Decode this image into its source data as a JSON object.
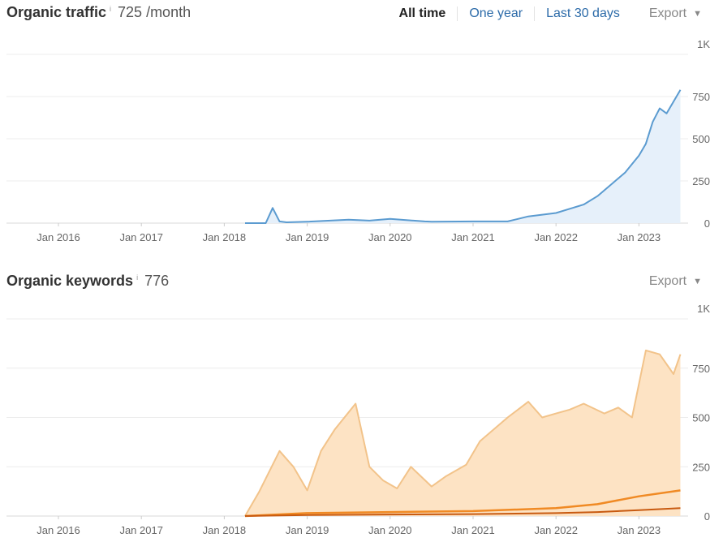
{
  "traffic": {
    "title": "Organic traffic",
    "info": "i",
    "metric": "725 /month",
    "controls": [
      "All time",
      "One year",
      "Last 30 days"
    ],
    "active_control": "All time",
    "export_label": "Export",
    "y_ticks": [
      "1K",
      "750",
      "500",
      "250",
      "0"
    ],
    "x_ticks": [
      "Jan 2016",
      "Jan 2017",
      "Jan 2018",
      "Jan 2019",
      "Jan 2020",
      "Jan 2021",
      "Jan 2022",
      "Jan 2023"
    ]
  },
  "keywords": {
    "title": "Organic keywords",
    "info": "i",
    "metric": "776",
    "export_label": "Export",
    "y_ticks": [
      "1K",
      "750",
      "500",
      "250",
      "0"
    ],
    "x_ticks": [
      "Jan 2016",
      "Jan 2017",
      "Jan 2018",
      "Jan 2019",
      "Jan 2020",
      "Jan 2021",
      "Jan 2022",
      "Jan 2023"
    ]
  },
  "colors": {
    "traffic_line": "#5b9bd0",
    "traffic_fill": "#e6f0fa",
    "keywords_total_line": "#f2c38a",
    "keywords_total_fill": "#fde3c4",
    "keywords_mid_line": "#f08a24",
    "keywords_top_line": "#c85a10",
    "link": "#2b6aa8"
  },
  "chart_data": [
    {
      "type": "area",
      "ylim": [
        0,
        1000
      ],
      "grid": true,
      "series": [
        {
          "x": [
            "2018-04",
            "2018-07",
            "2018-08",
            "2018-09",
            "2018-10",
            "2019-01",
            "2019-07",
            "2019-10",
            "2020-01",
            "2020-06",
            "2020-07",
            "2021-01",
            "2021-06",
            "2021-09",
            "2021-11",
            "2022-01",
            "2022-03",
            "2022-05",
            "2022-07",
            "2022-09",
            "2022-11",
            "2023-01",
            "2023-02",
            "2023-03",
            "2023-04",
            "2023-05",
            "2023-07"
          ],
          "values": [
            0,
            0,
            90,
            10,
            5,
            8,
            20,
            15,
            25,
            10,
            8,
            10,
            10,
            40,
            50,
            60,
            85,
            110,
            160,
            230,
            300,
            400,
            470,
            600,
            680,
            650,
            790
          ]
        }
      ]
    },
    {
      "type": "area",
      "ylim": [
        0,
        1000
      ],
      "grid": true,
      "series": [
        {
          "x": [
            "2018-04",
            "2018-06",
            "2018-09",
            "2018-11",
            "2019-01",
            "2019-03",
            "2019-05",
            "2019-08",
            "2019-10",
            "2019-12",
            "2020-02",
            "2020-04",
            "2020-07",
            "2020-09",
            "2020-12",
            "2021-02",
            "2021-06",
            "2021-09",
            "2021-11",
            "2022-01",
            "2022-03",
            "2022-05",
            "2022-08",
            "2022-10",
            "2022-12",
            "2023-02",
            "2023-04",
            "2023-06",
            "2023-07"
          ],
          "values": [
            0,
            120,
            330,
            250,
            130,
            330,
            440,
            570,
            250,
            180,
            140,
            250,
            150,
            200,
            260,
            380,
            500,
            580,
            500,
            520,
            540,
            570,
            520,
            550,
            500,
            840,
            820,
            720,
            820
          ]
        },
        {
          "x": [
            "2018-04",
            "2019-01",
            "2020-01",
            "2021-01",
            "2022-01",
            "2022-07",
            "2023-01",
            "2023-07"
          ],
          "values": [
            0,
            15,
            20,
            25,
            40,
            60,
            100,
            130
          ]
        },
        {
          "x": [
            "2018-04",
            "2019-01",
            "2020-01",
            "2021-01",
            "2022-01",
            "2022-07",
            "2023-01",
            "2023-07"
          ],
          "values": [
            0,
            5,
            8,
            10,
            15,
            20,
            30,
            40
          ]
        }
      ]
    }
  ]
}
